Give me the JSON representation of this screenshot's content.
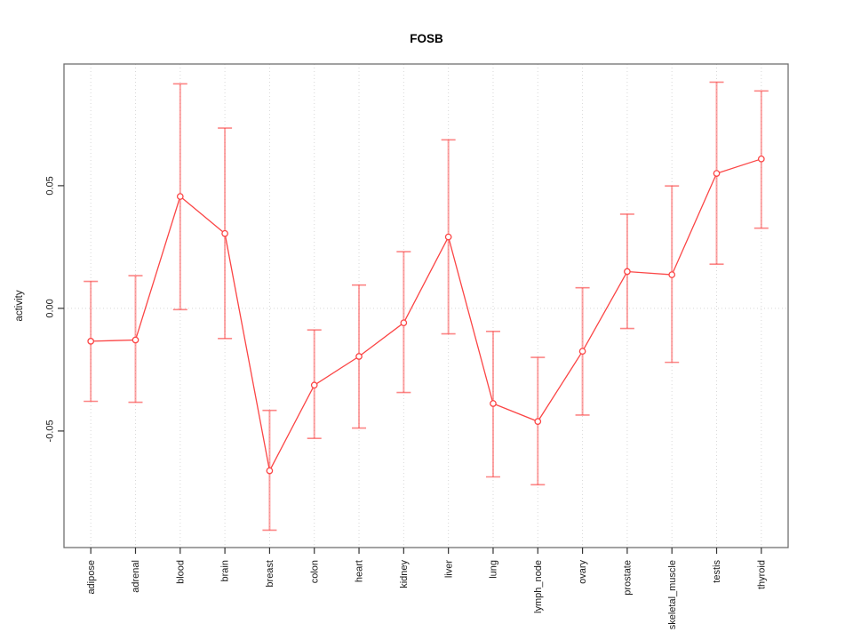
{
  "figure": {
    "title": "FOSB"
  },
  "chart_data": {
    "type": "line",
    "title": "FOSB",
    "xlabel": "",
    "ylabel": "activity",
    "categories": [
      "adipose",
      "adrenal",
      "blood",
      "brain",
      "breast",
      "colon",
      "heart",
      "kidney",
      "liver",
      "lung",
      "lymph_node",
      "ovary",
      "prostate",
      "skeletal_muscle",
      "testis",
      "thyroid"
    ],
    "series": [
      {
        "name": "FOSB activity",
        "values": [
          -0.0134,
          -0.0129,
          0.0456,
          0.0305,
          -0.0662,
          -0.0313,
          -0.0196,
          -0.0059,
          0.0291,
          -0.0388,
          -0.0461,
          -0.0175,
          0.015,
          0.0137,
          0.055,
          0.0609
        ],
        "upper": [
          0.011,
          0.0133,
          0.0915,
          0.0735,
          -0.0416,
          -0.0088,
          0.0095,
          0.0231,
          0.0687,
          -0.0094,
          -0.02,
          0.0084,
          0.0384,
          0.0499,
          0.0922,
          0.0886
        ],
        "lower": [
          -0.0379,
          -0.0383,
          -0.0005,
          -0.0123,
          -0.0904,
          -0.053,
          -0.0488,
          -0.0343,
          -0.0104,
          -0.0687,
          -0.0719,
          -0.0435,
          -0.0082,
          -0.022,
          0.018,
          0.0327
        ]
      }
    ],
    "yticks": [
      -0.05,
      0,
      0.05
    ],
    "ytick_labels": [
      "-0.05",
      "0.00",
      "0.05"
    ],
    "ylim": [
      -0.0975,
      0.0996
    ],
    "reference_line_y": 0,
    "grid": {
      "vertical": "dotted line at each category",
      "horizontal": "dotted line at y = 0"
    },
    "legend": "none",
    "marker": "open-circle",
    "error_bars": true,
    "colors": {
      "line": "#fb4545",
      "marker_stroke": "#fb4545",
      "marker_fill": "#ffffff",
      "error_bar": "#fb4545",
      "error_bar_opacity": 0.5,
      "grid": "#d8d8d8",
      "axis_box": "#707070",
      "tick": "#333333",
      "text": "#1a1a1a"
    }
  }
}
